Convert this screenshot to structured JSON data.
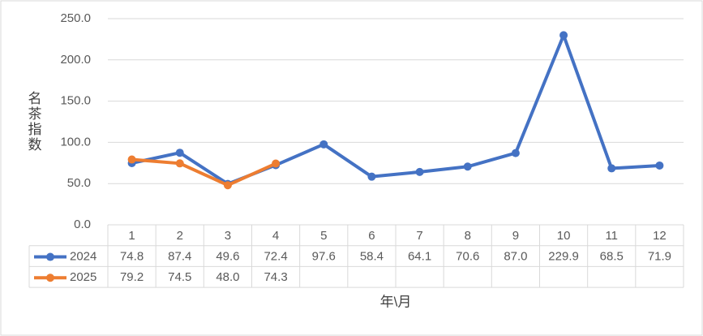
{
  "chart_data": {
    "type": "line",
    "y_label": "名茶指数",
    "x_label": "年\\月",
    "categories": [
      "1",
      "2",
      "3",
      "4",
      "5",
      "6",
      "7",
      "8",
      "9",
      "10",
      "11",
      "12"
    ],
    "series": [
      {
        "name": "2024",
        "color": "#4472c4",
        "values": [
          74.8,
          87.4,
          49.6,
          72.4,
          97.6,
          58.4,
          64.1,
          70.6,
          87.0,
          229.9,
          68.5,
          71.9
        ],
        "value_labels": [
          "74.8",
          "87.4",
          "49.6",
          "72.4",
          "97.6",
          "58.4",
          "64.1",
          "70.6",
          "87.0",
          "229.9",
          "68.5",
          "71.9"
        ]
      },
      {
        "name": "2025",
        "color": "#ed7d31",
        "values": [
          79.2,
          74.5,
          48.0,
          74.3,
          null,
          null,
          null,
          null,
          null,
          null,
          null,
          null
        ],
        "value_labels": [
          "79.2",
          "74.5",
          "48.0",
          "74.3",
          null,
          null,
          null,
          null,
          null,
          null,
          null,
          null
        ]
      }
    ],
    "ylim": [
      0,
      250
    ],
    "yticks": [
      {
        "value": 0,
        "label": "0.0"
      },
      {
        "value": 50,
        "label": "50.0"
      },
      {
        "value": 100,
        "label": "100.0"
      },
      {
        "value": 150,
        "label": "150.0"
      },
      {
        "value": 200,
        "label": "200.0"
      },
      {
        "value": 250,
        "label": "250.0"
      }
    ],
    "grid": true,
    "data_table": true
  }
}
